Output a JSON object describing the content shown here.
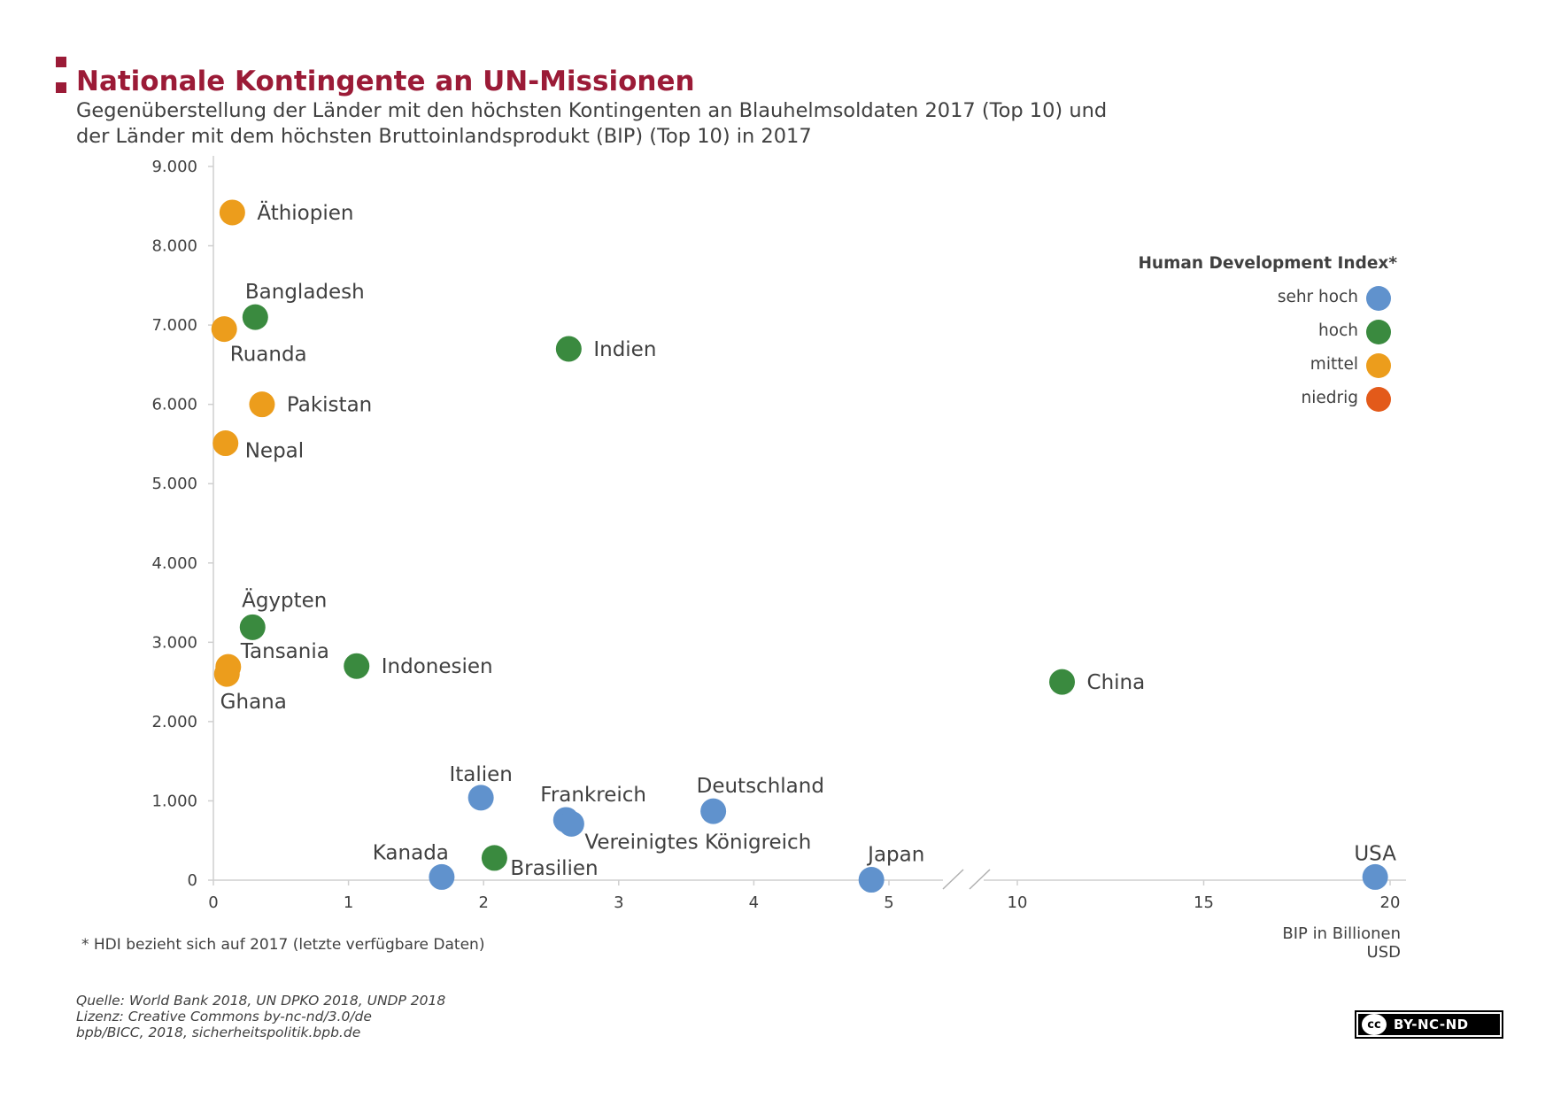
{
  "title": "Nationale Kontingente an UN-Missionen",
  "subtitle_lines": [
    "Gegenüberstellung der Länder mit den höchsten Kontingenten an Blauhelmsoldaten 2017 (Top 10) und",
    "der Länder mit dem höchsten Bruttoinlandsprodukt (BIP) (Top 10) in 2017"
  ],
  "footnote": "* HDI bezieht sich auf 2017 (letzte verfügbare Daten)",
  "source_lines": [
    "Quelle: World Bank 2018, UN DPKO 2018, UNDP 2018",
    "Lizenz: Creative Commons by-nc-nd/3.0/de",
    "bpb/BICC, 2018, sicherheitspolitik.bpb.de"
  ],
  "license_badge": {
    "icon": "cc-icon",
    "text": "BY-NC-ND"
  },
  "chart_data": {
    "type": "scatter",
    "xlabel_lines": [
      "BIP in Billionen",
      "USD"
    ],
    "ylabel": "",
    "ylim": [
      0,
      9000
    ],
    "x_axis_break": {
      "segment1": [
        0,
        5.7
      ],
      "segment2": [
        8.5,
        20
      ]
    },
    "x_ticks": [
      {
        "value": 0,
        "label": "0"
      },
      {
        "value": 1,
        "label": "1"
      },
      {
        "value": 2,
        "label": "2"
      },
      {
        "value": 3,
        "label": "3"
      },
      {
        "value": 4,
        "label": "4"
      },
      {
        "value": 5,
        "label": "5"
      },
      {
        "value": 10,
        "label": "10"
      },
      {
        "value": 15,
        "label": "15"
      },
      {
        "value": 20,
        "label": "20"
      }
    ],
    "y_ticks": [
      {
        "value": 0,
        "label": "0"
      },
      {
        "value": 1000,
        "label": "1.000"
      },
      {
        "value": 2000,
        "label": "2.000"
      },
      {
        "value": 3000,
        "label": "3.000"
      },
      {
        "value": 4000,
        "label": "4.000"
      },
      {
        "value": 5000,
        "label": "5.000"
      },
      {
        "value": 6000,
        "label": "6.000"
      },
      {
        "value": 7000,
        "label": "7.000"
      },
      {
        "value": 8000,
        "label": "8.000"
      },
      {
        "value": 9000,
        "label": "9.000"
      }
    ],
    "grid": false,
    "legend": {
      "title": "Human Development Index*",
      "position": "top-right",
      "items": [
        {
          "key": "sehr_hoch",
          "label": "sehr hoch",
          "color": "#6092cd"
        },
        {
          "key": "hoch",
          "label": "hoch",
          "color": "#3a8a3f"
        },
        {
          "key": "mittel",
          "label": "mittel",
          "color": "#ec9d1c"
        },
        {
          "key": "niedrig",
          "label": "niedrig",
          "color": "#e35a1a"
        }
      ]
    },
    "points": [
      {
        "label": "Äthiopien",
        "x": 0.14,
        "y": 8420,
        "hdi": "mittel",
        "label_pos": "right"
      },
      {
        "label": "Bangladesh",
        "x": 0.31,
        "y": 7100,
        "hdi": "hoch",
        "label_pos": "above"
      },
      {
        "label": "Ruanda",
        "x": 0.08,
        "y": 6950,
        "hdi": "mittel",
        "label_pos": "below"
      },
      {
        "label": "Indien",
        "x": 2.63,
        "y": 6700,
        "hdi": "hoch",
        "label_pos": "right"
      },
      {
        "label": "Pakistan",
        "x": 0.36,
        "y": 6000,
        "hdi": "mittel",
        "label_pos": "right"
      },
      {
        "label": "Nepal",
        "x": 0.09,
        "y": 5510,
        "hdi": "mittel",
        "label_pos": "below-right"
      },
      {
        "label": "Ägypten",
        "x": 0.29,
        "y": 3190,
        "hdi": "hoch",
        "label_pos": "above"
      },
      {
        "label": "Tansania",
        "x": 0.11,
        "y": 2690,
        "hdi": "mittel",
        "label_pos": "right-up"
      },
      {
        "label": "Ghana",
        "x": 0.1,
        "y": 2600,
        "hdi": "mittel",
        "label_pos": "below"
      },
      {
        "label": "Indonesien",
        "x": 1.06,
        "y": 2700,
        "hdi": "hoch",
        "label_pos": "right"
      },
      {
        "label": "China",
        "x": 11.2,
        "y": 2500,
        "hdi": "hoch",
        "label_pos": "right"
      },
      {
        "label": "Italien",
        "x": 1.98,
        "y": 1040,
        "hdi": "sehr_hoch",
        "label_pos": "above"
      },
      {
        "label": "Frankreich",
        "x": 2.61,
        "y": 760,
        "hdi": "sehr_hoch",
        "label_pos": "above-right"
      },
      {
        "label": "Vereinigtes Königreich",
        "x": 2.65,
        "y": 710,
        "hdi": "sehr_hoch",
        "label_pos": "below-right"
      },
      {
        "label": "Deutschland",
        "x": 3.7,
        "y": 870,
        "hdi": "sehr_hoch",
        "label_pos": "above-right"
      },
      {
        "label": "Kanada",
        "x": 1.69,
        "y": 40,
        "hdi": "sehr_hoch",
        "label_pos": "above-left"
      },
      {
        "label": "Brasilien",
        "x": 2.08,
        "y": 280,
        "hdi": "hoch",
        "label_pos": "below-right"
      },
      {
        "label": "Japan",
        "x": 4.87,
        "y": 5,
        "hdi": "sehr_hoch",
        "label_pos": "above-right"
      },
      {
        "label": "USA",
        "x": 19.6,
        "y": 40,
        "hdi": "sehr_hoch",
        "label_pos": "above"
      }
    ]
  }
}
